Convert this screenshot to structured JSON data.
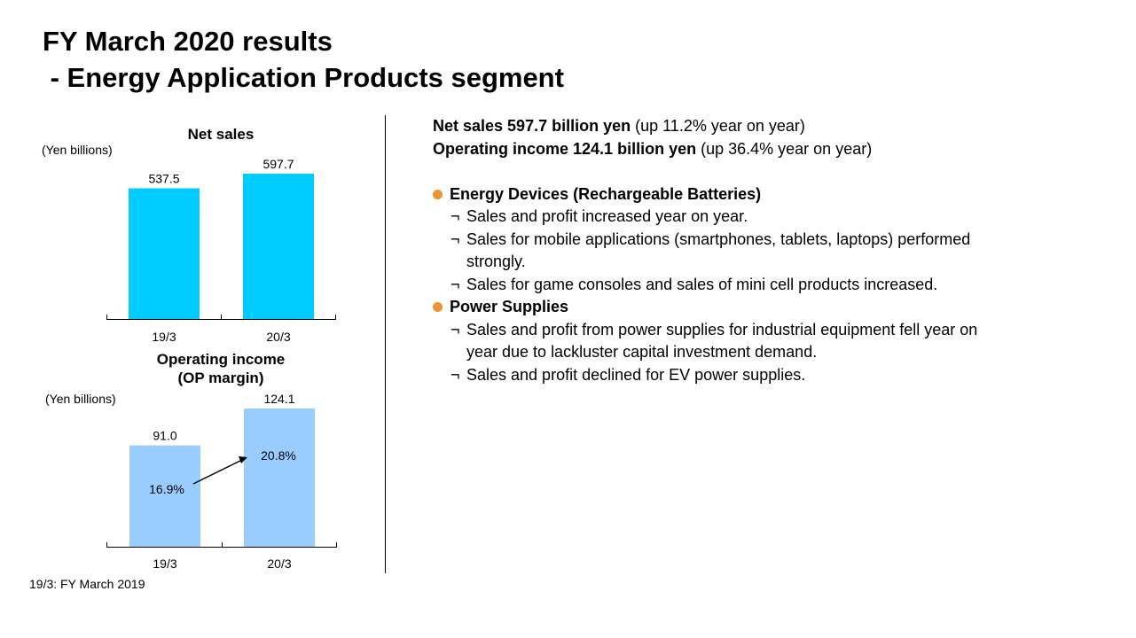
{
  "title": {
    "line1": "FY March 2020 results",
    "line2": " - Energy Application Products segment"
  },
  "chart_data": [
    {
      "type": "bar",
      "title": "Net sales",
      "unit_label": "(Yen billions)",
      "categories": [
        "19/3",
        "20/3"
      ],
      "values": [
        537.5,
        597.7
      ],
      "value_labels": [
        "537.5",
        "597.7"
      ],
      "color": "#00ccff",
      "ylim": [
        0,
        597.7
      ]
    },
    {
      "type": "bar",
      "title": "Operating income",
      "subtitle": "(OP margin)",
      "unit_label": "(Yen billions)",
      "categories": [
        "19/3",
        "20/3"
      ],
      "values": [
        91.0,
        124.1
      ],
      "value_labels": [
        "91.0",
        "124.1"
      ],
      "margins": [
        16.9,
        20.8
      ],
      "margin_labels": [
        "16.9%",
        "20.8%"
      ],
      "color": "#99ccff",
      "ylim": [
        0,
        124.1
      ]
    }
  ],
  "footnote": "19/3: FY March 2019",
  "summary": {
    "net_sales_bold": "Net sales 597.7 billion yen",
    "net_sales_rest": " (up 11.2% year on year)",
    "op_income_bold": "Operating income 124.1 billion yen",
    "op_income_rest": " (up 36.4% year on year)"
  },
  "segments": {
    "energy_devices": {
      "heading": "Energy Devices (Rechargeable Batteries)",
      "points": {
        "p1": "Sales and profit increased year on year.",
        "p2a": "Sales for mobile applications (smartphones, tablets, laptops) performed",
        "p2b": "strongly.",
        "p3": "Sales for game consoles and sales of mini cell products increased."
      }
    },
    "power_supplies": {
      "heading": "Power Supplies",
      "points": {
        "p1a": "Sales and profit from power supplies for industrial equipment fell year on",
        "p1b": "year due to lackluster capital investment demand.",
        "p2": "Sales and profit declined for EV power supplies."
      }
    }
  },
  "bullet_symbol": "●",
  "sub_bullet_symbol": "¬",
  "colors": {
    "bullet": "#f0922e",
    "net_sales_bar": "#00ccff",
    "op_income_bar": "#99ccff"
  }
}
